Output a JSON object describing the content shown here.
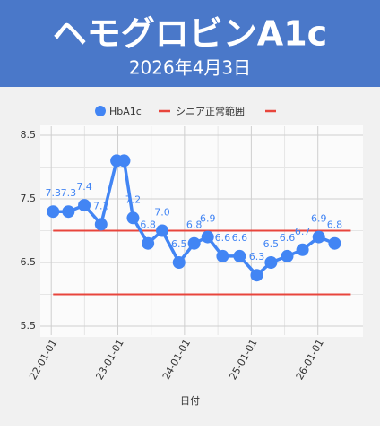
{
  "header": {
    "title": "ヘモグロビンA1c",
    "date": "2026年4月3日"
  },
  "chart_data": {
    "type": "line",
    "x": [
      "22-01-11",
      "22-04-05",
      "22-07-01",
      "22-10-01",
      "22-12-25",
      "23-02-04",
      "23-03-25",
      "23-06-15",
      "23-09-01",
      "23-12-02",
      "24-02-23",
      "24-05-07",
      "24-07-28",
      "24-10-29",
      "25-01-31",
      "25-04-19",
      "25-07-17",
      "25-10-09",
      "26-01-06",
      "26-04-03"
    ],
    "series": [
      {
        "name": "HbA1c",
        "color": "#4285f4",
        "values": [
          7.3,
          7.3,
          7.4,
          7.1,
          8.1,
          8.1,
          7.2,
          6.8,
          7.0,
          6.5,
          6.8,
          6.9,
          6.6,
          6.6,
          6.3,
          6.5,
          6.6,
          6.7,
          6.9,
          6.8
        ],
        "value_labels": [
          "7.3",
          "7.3",
          "7.4",
          "7.1",
          null,
          null,
          "7.2",
          "6.8",
          "7.0",
          "6.5",
          "6.8",
          "6.9",
          "6.6",
          "6.6",
          "6.3",
          "6.5",
          "6.6",
          "6.7",
          "6.9",
          "6.8"
        ]
      }
    ],
    "reference_lines": [
      {
        "name": "シニア正常範囲",
        "value": 7.0,
        "color": "#e8453c"
      },
      {
        "value": 6.0,
        "color": "#e8453c"
      }
    ],
    "xlabel": "日付",
    "xlim": [
      "21-11-02",
      "26-09-05"
    ],
    "xticks": [
      "22-01-01",
      "23-01-01",
      "24-01-01",
      "25-01-01",
      "26-01-01"
    ],
    "ylim": [
      5.5,
      8.5
    ],
    "yticks": [
      5.5,
      6.5,
      7.5,
      8.5
    ],
    "grid": true
  }
}
